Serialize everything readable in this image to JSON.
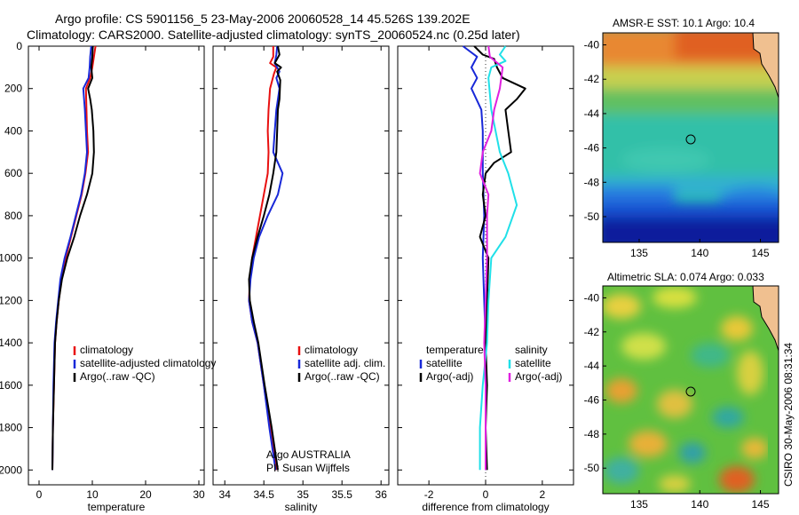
{
  "title": {
    "line1": "Argo profile: CS 5901156_5 23-May-2006 20060528_14 45.526S 139.202E",
    "line2": "Climatology: CARS2000. Satellite-adjusted climatology: synTS_20060524.nc (0.25d later)"
  },
  "side_label": "CSIRO 30-May-2006 08:31:34",
  "colors": {
    "climatology": "#e81010",
    "satellite": "#1828d8",
    "argo": "#000000",
    "salinity_sat": "#20e0e8",
    "salinity_argo": "#e020e0"
  },
  "chart_data": [
    {
      "type": "line",
      "xlabel": "temperature",
      "xlim": [
        -2,
        31
      ],
      "ylim": [
        2070,
        0
      ],
      "xticks": [
        0,
        10,
        20,
        30
      ],
      "yticks": [
        0,
        200,
        400,
        600,
        800,
        1000,
        1200,
        1400,
        1600,
        1800,
        2000
      ],
      "legend": [
        "climatology",
        "satellite-adjusted climatology",
        "Argo(..raw -QC)"
      ],
      "series": [
        {
          "name": "climatology",
          "color": "#e81010",
          "points": [
            [
              10.6,
              0
            ],
            [
              10.3,
              50
            ],
            [
              10.0,
              100
            ],
            [
              9.6,
              150
            ],
            [
              8.8,
              200
            ],
            [
              8.9,
              300
            ],
            [
              9.0,
              400
            ],
            [
              9.2,
              500
            ],
            [
              8.7,
              600
            ],
            [
              8.0,
              700
            ],
            [
              7.0,
              800
            ],
            [
              6.0,
              900
            ],
            [
              5.0,
              1000
            ],
            [
              4.2,
              1100
            ],
            [
              3.7,
              1200
            ],
            [
              3.3,
              1300
            ],
            [
              3.0,
              1400
            ],
            [
              2.8,
              1600
            ],
            [
              2.6,
              1800
            ],
            [
              2.5,
              2000
            ]
          ]
        },
        {
          "name": "satellite-adjusted climatology",
          "color": "#1828d8",
          "points": [
            [
              9.8,
              0
            ],
            [
              9.6,
              50
            ],
            [
              9.5,
              100
            ],
            [
              9.3,
              150
            ],
            [
              8.3,
              200
            ],
            [
              8.6,
              300
            ],
            [
              8.8,
              400
            ],
            [
              9.0,
              500
            ],
            [
              8.6,
              600
            ],
            [
              7.9,
              700
            ],
            [
              6.9,
              800
            ],
            [
              5.9,
              900
            ],
            [
              4.8,
              1000
            ],
            [
              4.0,
              1100
            ],
            [
              3.6,
              1200
            ],
            [
              3.2,
              1300
            ],
            [
              2.9,
              1400
            ],
            [
              2.7,
              1600
            ],
            [
              2.6,
              1800
            ],
            [
              2.5,
              2000
            ]
          ]
        },
        {
          "name": "Argo(..raw -QC)",
          "color": "#000000",
          "points": [
            [
              10.1,
              0
            ],
            [
              10.0,
              50
            ],
            [
              9.8,
              100
            ],
            [
              10.0,
              150
            ],
            [
              9.2,
              200
            ],
            [
              9.6,
              250
            ],
            [
              9.9,
              300
            ],
            [
              10.2,
              400
            ],
            [
              10.3,
              500
            ],
            [
              10.0,
              600
            ],
            [
              9.0,
              700
            ],
            [
              7.7,
              800
            ],
            [
              6.6,
              900
            ],
            [
              5.3,
              1000
            ],
            [
              4.3,
              1100
            ],
            [
              3.7,
              1200
            ],
            [
              3.3,
              1300
            ],
            [
              3.0,
              1400
            ],
            [
              2.8,
              1600
            ],
            [
              2.6,
              1800
            ],
            [
              2.5,
              2000
            ]
          ]
        }
      ]
    },
    {
      "type": "line",
      "xlabel": "salinity",
      "xlim": [
        33.85,
        36.1
      ],
      "ylim": [
        2070,
        0
      ],
      "xticks": [
        34,
        34.5,
        35,
        35.5,
        36
      ],
      "yticks": [
        0,
        200,
        400,
        600,
        800,
        1000,
        1200,
        1400,
        1600,
        1800,
        2000
      ],
      "legend": [
        "climatology",
        "satellite adj. clim.",
        "Argo(..raw -QC)"
      ],
      "annotation": [
        "Argo AUSTRALIA",
        "PI: Susan Wijffels"
      ],
      "series": [
        {
          "name": "climatology",
          "color": "#e81010",
          "points": [
            [
              34.62,
              0
            ],
            [
              34.62,
              50
            ],
            [
              34.58,
              80
            ],
            [
              34.66,
              100
            ],
            [
              34.63,
              130
            ],
            [
              34.58,
              200
            ],
            [
              34.56,
              300
            ],
            [
              34.55,
              400
            ],
            [
              34.56,
              500
            ],
            [
              34.55,
              600
            ],
            [
              34.5,
              700
            ],
            [
              34.45,
              800
            ],
            [
              34.4,
              900
            ],
            [
              34.35,
              1000
            ],
            [
              34.32,
              1100
            ],
            [
              34.31,
              1200
            ],
            [
              34.35,
              1300
            ],
            [
              34.42,
              1400
            ],
            [
              34.5,
              1600
            ],
            [
              34.58,
              1800
            ],
            [
              34.66,
              2000
            ]
          ]
        },
        {
          "name": "satellite adj. clim.",
          "color": "#1828d8",
          "points": [
            [
              34.67,
              0
            ],
            [
              34.66,
              40
            ],
            [
              34.64,
              80
            ],
            [
              34.7,
              120
            ],
            [
              34.66,
              150
            ],
            [
              34.7,
              200
            ],
            [
              34.66,
              300
            ],
            [
              34.64,
              400
            ],
            [
              34.62,
              500
            ],
            [
              34.74,
              600
            ],
            [
              34.68,
              700
            ],
            [
              34.55,
              800
            ],
            [
              34.44,
              900
            ],
            [
              34.37,
              1000
            ],
            [
              34.33,
              1100
            ],
            [
              34.31,
              1200
            ],
            [
              34.35,
              1300
            ],
            [
              34.42,
              1400
            ],
            [
              34.5,
              1600
            ],
            [
              34.57,
              1800
            ],
            [
              34.65,
              2000
            ]
          ]
        },
        {
          "name": "Argo(..raw -QC)",
          "color": "#000000",
          "points": [
            [
              34.68,
              0
            ],
            [
              34.7,
              40
            ],
            [
              34.64,
              80
            ],
            [
              34.72,
              100
            ],
            [
              34.67,
              120
            ],
            [
              34.71,
              160
            ],
            [
              34.7,
              250
            ],
            [
              34.68,
              300
            ],
            [
              34.67,
              400
            ],
            [
              34.66,
              500
            ],
            [
              34.62,
              600
            ],
            [
              34.57,
              700
            ],
            [
              34.5,
              800
            ],
            [
              34.42,
              900
            ],
            [
              34.35,
              1000
            ],
            [
              34.31,
              1100
            ],
            [
              34.32,
              1200
            ],
            [
              34.37,
              1300
            ],
            [
              34.43,
              1400
            ],
            [
              34.51,
              1600
            ],
            [
              34.6,
              1800
            ],
            [
              34.68,
              2000
            ]
          ]
        }
      ]
    },
    {
      "type": "line",
      "xlabel": "difference from climatology",
      "xlim": [
        -3.1,
        3.1
      ],
      "ylim": [
        2070,
        0
      ],
      "xticks": [
        -2,
        0,
        2
      ],
      "yticks": [
        0,
        200,
        400,
        600,
        800,
        1000,
        1200,
        1400,
        1600,
        1800,
        2000
      ],
      "legend_left": [
        "temperature",
        "satellite",
        "Argo(-adj)"
      ],
      "legend_right": [
        "salinity",
        "satellite",
        "Argo(-adj)"
      ],
      "series": [
        {
          "name": "temperature satellite",
          "color": "#1828d8",
          "points": [
            [
              -0.8,
              0
            ],
            [
              -0.3,
              50
            ],
            [
              -0.5,
              100
            ],
            [
              -0.3,
              150
            ],
            [
              -0.5,
              200
            ],
            [
              -0.15,
              300
            ],
            [
              -0.1,
              400
            ],
            [
              -0.1,
              500
            ],
            [
              -0.1,
              600
            ],
            [
              -0.05,
              800
            ],
            [
              -0.1,
              1000
            ],
            [
              -0.05,
              1200
            ],
            [
              0,
              1400
            ],
            [
              0,
              1600
            ],
            [
              0,
              1800
            ],
            [
              0,
              2000
            ]
          ]
        },
        {
          "name": "temperature Argo(-adj)",
          "color": "#000000",
          "points": [
            [
              -0.4,
              0
            ],
            [
              -0.1,
              40
            ],
            [
              0.3,
              60
            ],
            [
              0.4,
              100
            ],
            [
              0.6,
              150
            ],
            [
              1.4,
              200
            ],
            [
              1.1,
              250
            ],
            [
              0.7,
              300
            ],
            [
              0.8,
              400
            ],
            [
              0.9,
              500
            ],
            [
              0.3,
              550
            ],
            [
              0,
              600
            ],
            [
              -0.1,
              700
            ],
            [
              0,
              800
            ],
            [
              -0.2,
              900
            ],
            [
              0.1,
              1000
            ],
            [
              0.05,
              1200
            ],
            [
              0,
              1400
            ],
            [
              0.05,
              1600
            ],
            [
              0,
              1800
            ],
            [
              0.05,
              2000
            ]
          ]
        },
        {
          "name": "salinity satellite",
          "color": "#20e0e8",
          "points": [
            [
              0.7,
              0
            ],
            [
              0.5,
              40
            ],
            [
              0.7,
              70
            ],
            [
              0.2,
              100
            ],
            [
              0.1,
              150
            ],
            [
              0.2,
              300
            ],
            [
              0.5,
              500
            ],
            [
              0.8,
              600
            ],
            [
              1.1,
              750
            ],
            [
              0.7,
              900
            ],
            [
              0.2,
              1000
            ],
            [
              0.1,
              1200
            ],
            [
              0.05,
              1400
            ],
            [
              -0.1,
              1600
            ],
            [
              -0.2,
              1800
            ],
            [
              -0.2,
              2000
            ]
          ]
        },
        {
          "name": "salinity Argo(-adj)",
          "color": "#e020e0",
          "points": [
            [
              0.1,
              0
            ],
            [
              0.15,
              50
            ],
            [
              0.6,
              100
            ],
            [
              0.5,
              200
            ],
            [
              0.3,
              300
            ],
            [
              0.2,
              400
            ],
            [
              -0.1,
              500
            ],
            [
              -0.2,
              600
            ],
            [
              0.1,
              700
            ],
            [
              0.05,
              800
            ],
            [
              0.05,
              1000
            ],
            [
              0,
              1200
            ],
            [
              -0.05,
              1400
            ],
            [
              0,
              1600
            ],
            [
              0,
              1800
            ],
            [
              0,
              2000
            ]
          ]
        }
      ]
    },
    {
      "type": "heatmap",
      "title": "AMSR-E SST: 10.1  Argo: 10.4",
      "xlim": [
        132,
        146.5
      ],
      "ylim": [
        -51.5,
        -39.3
      ],
      "xticks": [
        135,
        140,
        145
      ],
      "yticks": [
        -40,
        -42,
        -44,
        -46,
        -48,
        -50
      ],
      "marker": [
        139.2,
        -45.5
      ]
    },
    {
      "type": "heatmap",
      "title": "Altimetric SLA: 0.074  Argo: 0.033",
      "xlim": [
        132,
        146.5
      ],
      "ylim": [
        -51.5,
        -39.3
      ],
      "xticks": [
        135,
        140,
        145
      ],
      "yticks": [
        -40,
        -42,
        -44,
        -46,
        -48,
        -50
      ],
      "marker": [
        139.2,
        -45.5
      ]
    }
  ]
}
